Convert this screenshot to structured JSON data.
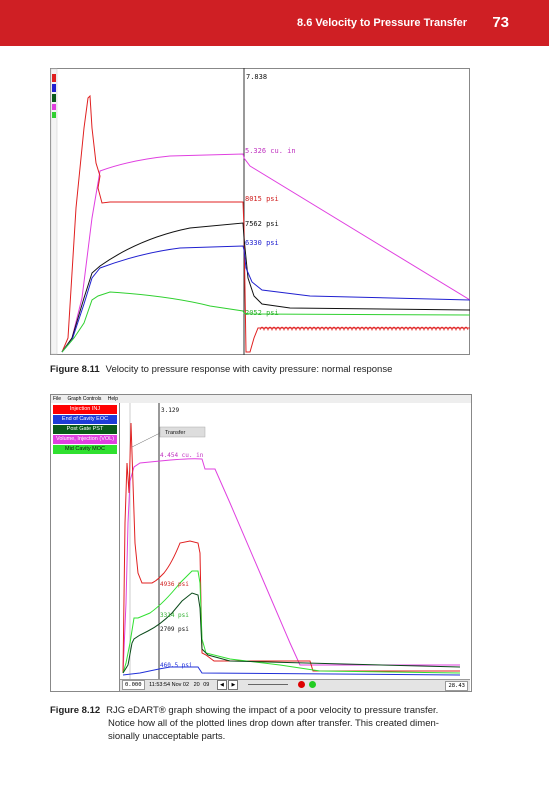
{
  "header": {
    "section": "8.6  Velocity to Pressure Transfer",
    "page_number": "73"
  },
  "figure1": {
    "label": "Figure 8.11",
    "caption": "Velocity to pressure response with cavity pressure: normal response",
    "annotations": {
      "top": "7.838",
      "volume": "5.326 cu. in",
      "inj": "8015 psi",
      "pst": "7562 psi",
      "eoc": "6330 psi",
      "moc": "2052 psi"
    },
    "colors": {
      "red": "#e02020",
      "magenta": "#e040e0",
      "black": "#111111",
      "blue": "#2020d0",
      "green": "#30d030"
    }
  },
  "figure2": {
    "label": "Figure 8.12",
    "caption_lines": [
      "RJG eDART® graph showing the impact of a poor velocity to pressure transfer.",
      "Notice how all of the plotted lines drop down after transfer. This created dimen-",
      "sionally unacceptable parts."
    ],
    "menu": [
      "File",
      "Graph Controls",
      "Help"
    ],
    "legend": [
      {
        "label": "Injection INJ",
        "color": "#ff0000"
      },
      {
        "label": "End of Cavity EOC",
        "color": "#1e3cd8"
      },
      {
        "label": "Post Gate PST",
        "color": "#0a5a1a"
      },
      {
        "label": "Volume, Injection (VOL)",
        "color": "#e040e0"
      },
      {
        "label": "Mid Cavity MOC",
        "color": "#30e030"
      }
    ],
    "annotations": {
      "top": "3.129",
      "transfer": "Transfer",
      "volume": "4.454 cu. in",
      "inj": "4936 psi",
      "moc": "3314 psi",
      "pst": "2709 psi",
      "eoc": "460.5 psi"
    },
    "toolbar": {
      "left_value": "0.000",
      "time": "11:53:54 Nov 02",
      "counter_a": "20",
      "counter_b": "09",
      "right_value": "28.43"
    }
  }
}
